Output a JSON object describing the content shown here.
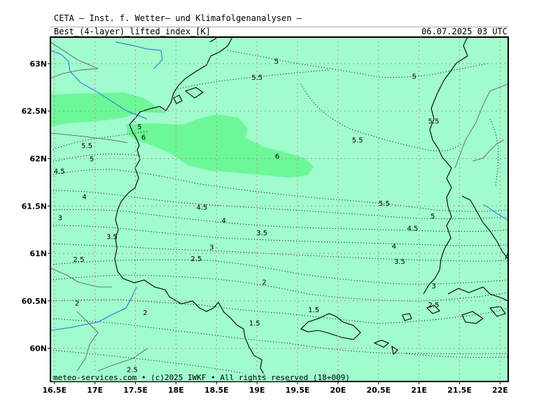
{
  "header": {
    "title": "CETA — Inst. f. Wetter— und Klimafolgenanalysen —",
    "subtitle": "Best_(4-layer)_lifted_index_[K]",
    "valid_time": "06.07.2025 03 UTC"
  },
  "footer": {
    "credit": "meteo-services.com • (c)2025 IWKF • All rights reserved (18+009)"
  },
  "axes": {
    "lat_labels": [
      "63N",
      "62.5N",
      "62N",
      "61.5N",
      "61N",
      "60.5N",
      "60N"
    ],
    "lon_labels": [
      "16.5E",
      "17E",
      "17.5E",
      "18E",
      "18.5E",
      "19E",
      "19.5E",
      "20E",
      "20.5E",
      "21E",
      "21.5E",
      "22E"
    ]
  },
  "colors": {
    "background_field": "#a0fccc",
    "higher_field": "#6cf899",
    "gridline": "#c09090",
    "coastline": "#000000",
    "border": "#555555",
    "river": "#2a6bd8"
  },
  "contour_labels": [
    {
      "text": "5",
      "lon": 19.24,
      "lat": 63.03
    },
    {
      "text": "5.5",
      "lon": 19.0,
      "lat": 62.86
    },
    {
      "text": "5",
      "lon": 20.94,
      "lat": 62.87
    },
    {
      "text": "5.5",
      "lon": 21.18,
      "lat": 62.4
    },
    {
      "text": "5",
      "lon": 17.55,
      "lat": 62.34
    },
    {
      "text": "6",
      "lon": 17.6,
      "lat": 62.23
    },
    {
      "text": "5.5",
      "lon": 16.9,
      "lat": 62.14
    },
    {
      "text": "5.5",
      "lon": 20.24,
      "lat": 62.2
    },
    {
      "text": "6",
      "lon": 19.25,
      "lat": 62.03
    },
    {
      "text": "5",
      "lon": 16.96,
      "lat": 62.0
    },
    {
      "text": "4.5",
      "lon": 16.56,
      "lat": 61.87
    },
    {
      "text": "4",
      "lon": 16.87,
      "lat": 61.6
    },
    {
      "text": "5.5",
      "lon": 20.57,
      "lat": 61.53
    },
    {
      "text": "4.5",
      "lon": 18.32,
      "lat": 61.49
    },
    {
      "text": "3",
      "lon": 16.57,
      "lat": 61.38
    },
    {
      "text": "4",
      "lon": 18.59,
      "lat": 61.35
    },
    {
      "text": "5",
      "lon": 21.17,
      "lat": 61.4
    },
    {
      "text": "4.5",
      "lon": 20.92,
      "lat": 61.27
    },
    {
      "text": "3.5",
      "lon": 19.06,
      "lat": 61.22
    },
    {
      "text": "3.5",
      "lon": 17.21,
      "lat": 61.18
    },
    {
      "text": "3",
      "lon": 18.44,
      "lat": 61.07
    },
    {
      "text": "4",
      "lon": 20.69,
      "lat": 61.08
    },
    {
      "text": "2.5",
      "lon": 16.8,
      "lat": 60.94
    },
    {
      "text": "2.5",
      "lon": 18.25,
      "lat": 60.95
    },
    {
      "text": "3.5",
      "lon": 20.76,
      "lat": 60.92
    },
    {
      "text": "2",
      "lon": 19.09,
      "lat": 60.7
    },
    {
      "text": "3",
      "lon": 21.18,
      "lat": 60.66
    },
    {
      "text": "2",
      "lon": 16.78,
      "lat": 60.48
    },
    {
      "text": "2.5",
      "lon": 21.18,
      "lat": 60.46
    },
    {
      "text": "2",
      "lon": 17.62,
      "lat": 60.38
    },
    {
      "text": "1.5",
      "lon": 19.7,
      "lat": 60.41
    },
    {
      "text": "1.5",
      "lon": 18.97,
      "lat": 60.27
    },
    {
      "text": "2.5",
      "lon": 17.46,
      "lat": 59.78
    }
  ]
}
